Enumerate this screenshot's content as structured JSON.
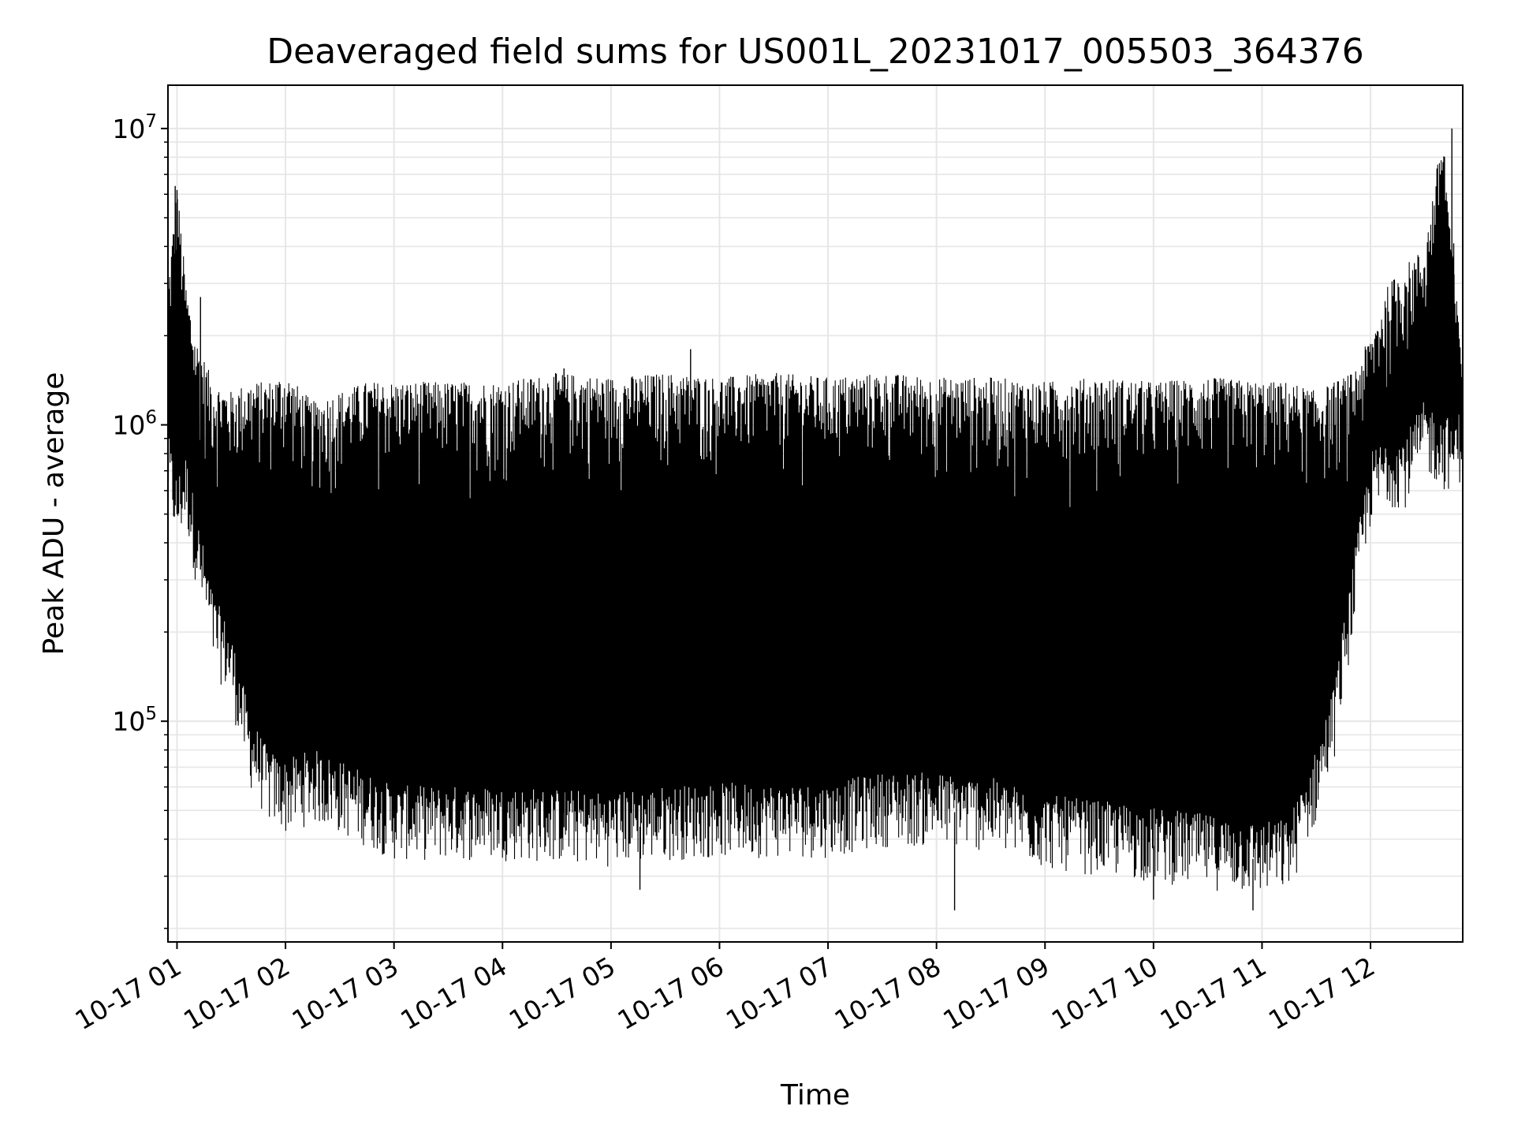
{
  "chart_data": {
    "type": "line",
    "title": "Deaveraged field sums for US001L_20231017_005503_364376",
    "xlabel": "Time",
    "ylabel": "Peak ADU - average",
    "yscale": "log",
    "ylim": [
      18000,
      14000000
    ],
    "xlim": [
      "2023-10-17T00:55",
      "2023-10-17T12:51"
    ],
    "grid": "on (major and minor)",
    "line_color": "#000000",
    "y_tick_labels": [
      {
        "value": 100000,
        "base": "10",
        "exp": "5"
      },
      {
        "value": 1000000,
        "base": "10",
        "exp": "6"
      },
      {
        "value": 10000000,
        "base": "10",
        "exp": "7"
      }
    ],
    "x_tick_labels": [
      {
        "time": "2023-10-17T01:00",
        "label": "10-17 01"
      },
      {
        "time": "2023-10-17T02:00",
        "label": "10-17 02"
      },
      {
        "time": "2023-10-17T03:00",
        "label": "10-17 03"
      },
      {
        "time": "2023-10-17T04:00",
        "label": "10-17 04"
      },
      {
        "time": "2023-10-17T05:00",
        "label": "10-17 05"
      },
      {
        "time": "2023-10-17T06:00",
        "label": "10-17 06"
      },
      {
        "time": "2023-10-17T07:00",
        "label": "10-17 07"
      },
      {
        "time": "2023-10-17T08:00",
        "label": "10-17 08"
      },
      {
        "time": "2023-10-17T09:00",
        "label": "10-17 09"
      },
      {
        "time": "2023-10-17T10:00",
        "label": "10-17 10"
      },
      {
        "time": "2023-10-17T11:00",
        "label": "10-17 11"
      },
      {
        "time": "2023-10-17T12:00",
        "label": "10-17 12"
      }
    ],
    "series": [
      {
        "x": [
          "2023-10-17T00:55",
          "2023-10-17T01:00",
          "2023-10-17T01:05",
          "2023-10-17T01:10",
          "2023-10-17T01:20",
          "2023-10-17T01:30",
          "2023-10-17T01:40",
          "2023-10-17T01:50",
          "2023-10-17T02:00",
          "2023-10-17T02:15",
          "2023-10-17T02:30",
          "2023-10-17T02:45",
          "2023-10-17T03:00",
          "2023-10-17T03:30",
          "2023-10-17T04:00",
          "2023-10-17T04:30",
          "2023-10-17T05:00",
          "2023-10-17T05:30",
          "2023-10-17T06:00",
          "2023-10-17T06:30",
          "2023-10-17T07:00",
          "2023-10-17T07:30",
          "2023-10-17T08:00",
          "2023-10-17T08:30",
          "2023-10-17T09:00",
          "2023-10-17T09:30",
          "2023-10-17T10:00",
          "2023-10-17T10:30",
          "2023-10-17T11:00",
          "2023-10-17T11:15",
          "2023-10-17T11:30",
          "2023-10-17T11:40",
          "2023-10-17T11:50",
          "2023-10-17T12:00",
          "2023-10-17T12:10",
          "2023-10-17T12:20",
          "2023-10-17T12:30",
          "2023-10-17T12:40",
          "2023-10-17T12:48",
          "2023-10-17T12:51"
        ],
        "low": [
          700000,
          500000,
          600000,
          400000,
          200000,
          150000,
          80000,
          60000,
          55000,
          60000,
          55000,
          50000,
          45000,
          45000,
          45000,
          44000,
          43000,
          45000,
          46000,
          46000,
          46000,
          50000,
          50000,
          48000,
          42000,
          40000,
          38000,
          36000,
          34000,
          35000,
          60000,
          100000,
          250000,
          600000,
          700000,
          700000,
          900000,
          800000,
          800000,
          900000
        ],
        "high": [
          3000000,
          6500000,
          3000000,
          2000000,
          1400000,
          1300000,
          1400000,
          1400000,
          1500000,
          1200000,
          1300000,
          1400000,
          1400000,
          1400000,
          1400000,
          1500000,
          1450000,
          1500000,
          1450000,
          1500000,
          1450000,
          1500000,
          1450000,
          1450000,
          1400000,
          1450000,
          1400000,
          1450000,
          1400000,
          1400000,
          1300000,
          1400000,
          1500000,
          2000000,
          3000000,
          3500000,
          4000000,
          10000000,
          2500000,
          2000000
        ],
        "spikes": [
          {
            "x": "2023-10-17T00:59",
            "y": 6400000
          },
          {
            "x": "2023-10-17T01:00",
            "y": 6200000
          },
          {
            "x": "2023-10-17T01:13",
            "y": 2700000
          },
          {
            "x": "2023-10-17T04:34",
            "y": 1550000
          },
          {
            "x": "2023-10-17T05:44",
            "y": 1800000
          },
          {
            "x": "2023-10-17T12:45",
            "y": 10000000
          },
          {
            "x": "2023-10-17T12:46",
            "y": 4100000
          }
        ],
        "dips": [
          {
            "x": "2023-10-17T05:16",
            "y": 27000
          },
          {
            "x": "2023-10-17T08:10",
            "y": 23000
          },
          {
            "x": "2023-10-17T10:00",
            "y": 25000
          },
          {
            "x": "2023-10-17T10:55",
            "y": 23000
          }
        ]
      }
    ]
  }
}
